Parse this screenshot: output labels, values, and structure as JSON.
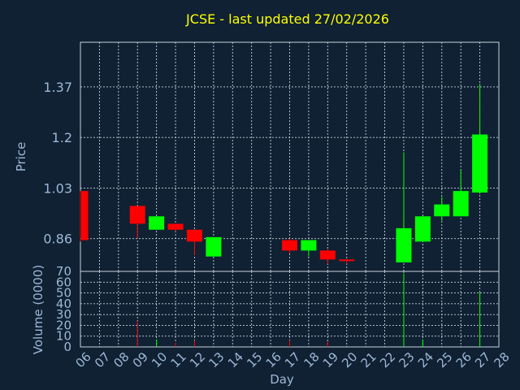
{
  "chart_data": {
    "type": "candlestick",
    "title": "JCSE - last updated 27/02/2026",
    "xlabel": "Day",
    "x_ticks": [
      "06",
      "07",
      "08",
      "09",
      "10",
      "11",
      "12",
      "13",
      "14",
      "15",
      "16",
      "17",
      "18",
      "19",
      "20",
      "21",
      "22",
      "23",
      "24",
      "25",
      "26",
      "27",
      "28"
    ],
    "price_panel": {
      "ylabel": "Price",
      "y_ticks": [
        "0.86",
        "1.03",
        "1.2",
        "1.37"
      ],
      "ylim": [
        0.75,
        1.52
      ],
      "candles": [
        {
          "day": "06",
          "open": 1.02,
          "high": 1.02,
          "low": 0.85,
          "close": 0.855
        },
        {
          "day": "09",
          "open": 0.97,
          "high": 0.97,
          "low": 0.86,
          "close": 0.91
        },
        {
          "day": "10",
          "open": 0.89,
          "high": 0.935,
          "low": 0.89,
          "close": 0.935
        },
        {
          "day": "11",
          "open": 0.91,
          "high": 0.91,
          "low": 0.885,
          "close": 0.89
        },
        {
          "day": "12",
          "open": 0.89,
          "high": 0.89,
          "low": 0.805,
          "close": 0.85
        },
        {
          "day": "13",
          "open": 0.8,
          "high": 0.865,
          "low": 0.8,
          "close": 0.865
        },
        {
          "day": "17",
          "open": 0.855,
          "high": 0.86,
          "low": 0.81,
          "close": 0.82
        },
        {
          "day": "18",
          "open": 0.82,
          "high": 0.855,
          "low": 0.8,
          "close": 0.855
        },
        {
          "day": "19",
          "open": 0.82,
          "high": 0.825,
          "low": 0.775,
          "close": 0.79
        },
        {
          "day": "20",
          "open": 0.79,
          "high": 0.79,
          "low": 0.775,
          "close": 0.785
        },
        {
          "day": "23",
          "open": 0.78,
          "high": 1.15,
          "low": 0.78,
          "close": 0.895
        },
        {
          "day": "24",
          "open": 0.85,
          "high": 0.935,
          "low": 0.85,
          "close": 0.935
        },
        {
          "day": "25",
          "open": 0.935,
          "high": 1.0,
          "low": 0.92,
          "close": 0.975
        },
        {
          "day": "26",
          "open": 0.935,
          "high": 1.09,
          "low": 0.935,
          "close": 1.02
        },
        {
          "day": "27",
          "open": 1.015,
          "high": 1.38,
          "low": 1.01,
          "close": 1.21
        }
      ]
    },
    "volume_panel": {
      "ylabel": "Volume (0000)",
      "y_ticks": [
        "0",
        "10",
        "20",
        "30",
        "40",
        "50",
        "60",
        "70"
      ],
      "ylim": [
        0,
        70
      ],
      "bars": [
        {
          "day": "09",
          "value": 24,
          "direction": "down"
        },
        {
          "day": "10",
          "value": 7,
          "direction": "up"
        },
        {
          "day": "11",
          "value": 4,
          "direction": "down"
        },
        {
          "day": "12",
          "value": 6,
          "direction": "down"
        },
        {
          "day": "17",
          "value": 6,
          "direction": "down"
        },
        {
          "day": "19",
          "value": 5,
          "direction": "down"
        },
        {
          "day": "23",
          "value": 68,
          "direction": "up"
        },
        {
          "day": "24",
          "value": 7,
          "direction": "up"
        },
        {
          "day": "27",
          "value": 51,
          "direction": "up"
        }
      ]
    },
    "colors": {
      "up": "#00ff00",
      "down": "#ff0000",
      "background": "#0f2133",
      "title": "#ffff00",
      "text": "#9fb8d6",
      "grid": "#c8d3de"
    },
    "grid": true
  }
}
